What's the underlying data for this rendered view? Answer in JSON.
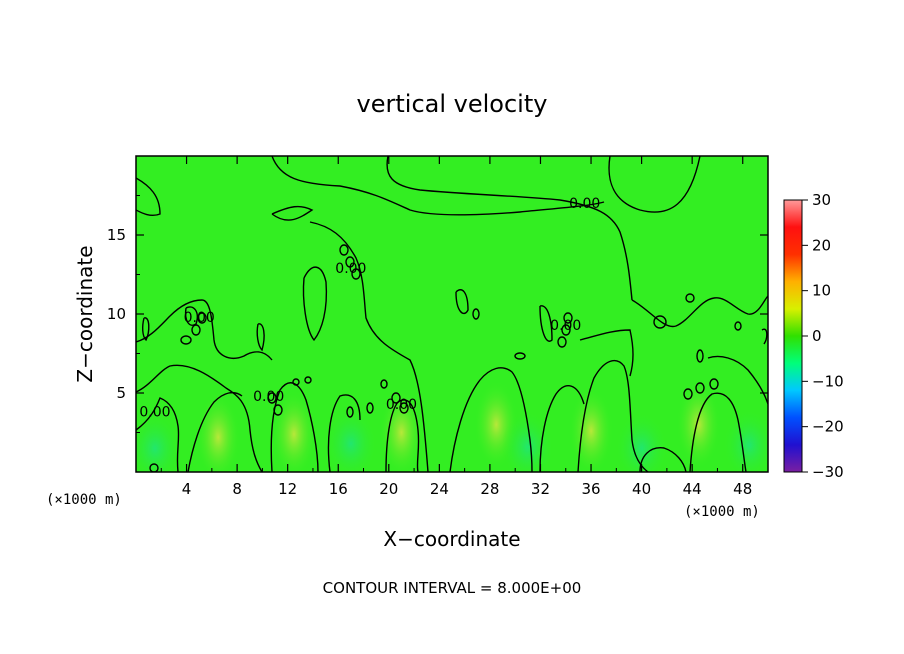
{
  "chart_data": {
    "type": "heatmap",
    "title": "vertical velocity",
    "xlabel": "X−coordinate",
    "ylabel": "Z−coordinate",
    "x_unit_left": "(×1000 m)",
    "x_unit_right": "(×1000 m)",
    "xlim": [
      0,
      50
    ],
    "ylim": [
      0,
      20
    ],
    "x_ticks": [
      4,
      8,
      12,
      16,
      20,
      24,
      28,
      32,
      36,
      40,
      44,
      48
    ],
    "y_ticks": [
      5,
      10,
      15
    ],
    "x_tick_labels": [
      "4",
      "8",
      "12",
      "16",
      "20",
      "24",
      "28",
      "32",
      "36",
      "40",
      "44",
      "48"
    ],
    "y_tick_labels": [
      "5",
      "10",
      "15"
    ],
    "colorbar": {
      "range": [
        -30,
        30
      ],
      "ticks": [
        30,
        20,
        10,
        0,
        -10,
        -20,
        -30
      ],
      "tick_labels": [
        "30",
        "20",
        "10",
        "0",
        "−10",
        "−20",
        "−30"
      ],
      "colormap": [
        "#7a1fa2",
        "#2010d0",
        "#0050ff",
        "#00c8ff",
        "#00ff7a",
        "#30e000",
        "#d8f000",
        "#ffb000",
        "#ff3000",
        "#ff1010",
        "#ff9a9a"
      ]
    },
    "background_value": 0,
    "highlight_color": "#b8e83a",
    "field_color": "#33ee22",
    "low_color": "#22e66e",
    "updraft_cells": [
      {
        "x": 6.5,
        "z": 2.2,
        "w": 4
      },
      {
        "x": 12.5,
        "z": 2.4,
        "w": 5
      },
      {
        "x": 21,
        "z": 2.5,
        "w": 5
      },
      {
        "x": 28.5,
        "z": 3.0,
        "w": 3
      },
      {
        "x": 36,
        "z": 2.6,
        "w": 5
      },
      {
        "x": 44.5,
        "z": 3.0,
        "w": 4
      }
    ],
    "downdraft_cells": [
      {
        "x": 1.5,
        "z": 1.5,
        "w": -2
      },
      {
        "x": 17,
        "z": 1.8,
        "w": -2
      },
      {
        "x": 31,
        "z": 1.6,
        "w": -2
      },
      {
        "x": 40,
        "z": 1.5,
        "w": -2
      },
      {
        "x": 48.5,
        "z": 1.7,
        "w": -2
      }
    ],
    "contour_labels": [
      {
        "text": "0.00",
        "x": 35.5,
        "z": 16.7
      },
      {
        "text": "0.00",
        "x": 17.0,
        "z": 12.6
      },
      {
        "text": "0.00",
        "x": 34.0,
        "z": 9.0
      },
      {
        "text": "0.00",
        "x": 5.0,
        "z": 9.5
      },
      {
        "text": "0.00",
        "x": 1.5,
        "z": 3.5
      },
      {
        "text": "0.00",
        "x": 21.0,
        "z": 4.0
      },
      {
        "text": "0.00",
        "x": 10.5,
        "z": 4.5
      }
    ],
    "contour_interval_text": "CONTOUR INTERVAL = 8.000E+00"
  }
}
